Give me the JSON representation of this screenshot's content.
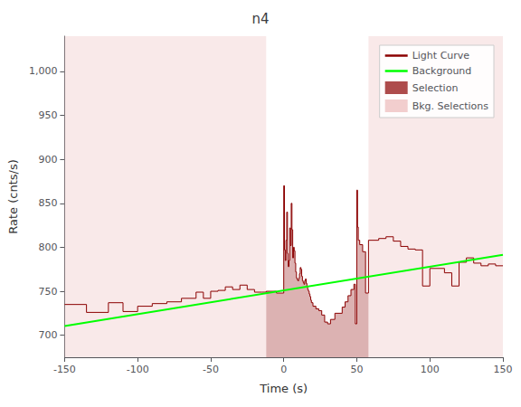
{
  "chart_data": {
    "type": "line",
    "title": "n4",
    "xlabel": "Time (s)",
    "ylabel": "Rate (cnts/s)",
    "xlim": [
      -150,
      150
    ],
    "ylim": [
      675,
      1040
    ],
    "xticks": [
      -150,
      -100,
      -50,
      0,
      50,
      100,
      150
    ],
    "yticks": [
      700,
      750,
      800,
      850,
      900,
      950,
      1000
    ],
    "grid": false,
    "legend": "upper right",
    "bins": [
      -150,
      -135,
      -120,
      -110,
      -100,
      -90,
      -80,
      -70,
      -60,
      -55,
      -50,
      -45,
      -40,
      -35,
      -30,
      -25,
      -20,
      -15,
      -12,
      -5,
      0,
      0.512,
      1.024,
      1.536,
      2.048,
      2.56,
      3.072,
      3.584,
      4.096,
      4.608,
      5.12,
      5.632,
      6.144,
      6.656,
      7.168,
      7.68,
      8.192,
      8.704,
      9.216,
      9.728,
      10.24,
      10.752,
      11.264,
      11.776,
      12.288,
      12.8,
      13.312,
      13.824,
      14.336,
      14.848,
      15.36,
      15.872,
      16.384,
      16.896,
      17.408,
      17.92,
      18.432,
      18.944,
      20.0,
      22.0,
      24.0,
      26.0,
      28.0,
      30.0,
      32.0,
      35.0,
      40.0,
      42.0,
      44.0,
      46.0,
      48.0,
      49.0,
      50.0,
      50.512,
      51.024,
      52.0,
      54.0,
      56.0,
      58.0,
      65.0,
      70.0,
      75.0,
      80.0,
      85.0,
      90.0,
      95.0,
      100.0,
      110.0,
      115.0,
      120.0,
      125.0,
      130.0,
      135.0,
      140.0,
      145.0,
      150.0
    ],
    "series": [
      {
        "name": "Light Curve",
        "type": "step",
        "color": "#8B0000",
        "values": [
          735,
          726,
          737,
          727,
          733,
          736,
          738,
          742,
          749,
          742,
          750,
          751,
          755,
          752,
          757,
          752,
          749,
          749,
          750,
          748,
          870,
          797,
          785,
          808,
          840,
          793,
          778,
          785,
          822,
          802,
          850,
          820,
          788,
          800,
          796,
          782,
          772,
          765,
          763,
          762,
          765,
          770,
          777,
          775,
          767,
          762,
          760,
          758,
          762,
          764,
          759,
          755,
          752,
          750,
          747,
          744,
          740,
          737,
          733,
          730,
          728,
          723,
          715,
          713,
          718,
          725,
          732,
          738,
          745,
          752,
          758,
          713,
          865,
          823,
          808,
          803,
          795,
          748,
          808,
          810,
          812,
          807,
          801,
          798,
          797,
          756,
          776,
          771,
          756,
          783,
          788,
          782,
          779,
          781,
          779
        ]
      },
      {
        "name": "Background",
        "type": "line",
        "color": "#00FF00",
        "x": [
          -150,
          150
        ],
        "values": [
          710.5,
          791.5
        ]
      },
      {
        "name": "Selection",
        "type": "area",
        "color": "#8B0000",
        "range": [
          -12,
          58
        ]
      },
      {
        "name": "Bkg. Selections",
        "type": "span",
        "color": "#F2CECE",
        "ranges": [
          [
            -150,
            -12
          ],
          [
            58,
            150
          ]
        ]
      }
    ]
  }
}
